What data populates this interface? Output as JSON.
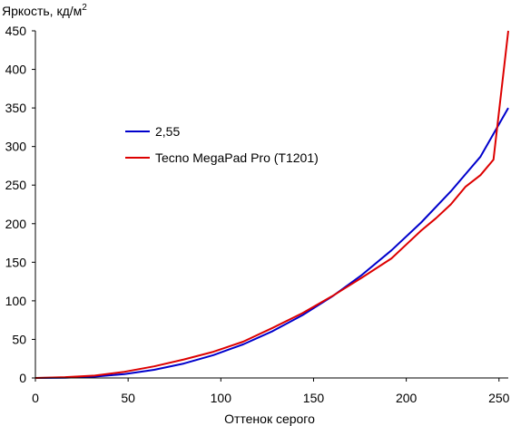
{
  "chart_data": {
    "type": "line",
    "xlabel": "Оттенок серого",
    "ylabel_main": "Яркость, кд/м",
    "ylabel_sup": "2",
    "xlim": [
      0,
      255
    ],
    "ylim": [
      0,
      450
    ],
    "xticks": [
      0,
      50,
      100,
      150,
      200,
      250
    ],
    "yticks": [
      0,
      50,
      100,
      150,
      200,
      250,
      300,
      350,
      400,
      450
    ],
    "grid": false,
    "legend_position": "center-left",
    "series": [
      {
        "name": "2,55",
        "color": "#0000cc",
        "gamma": 2.55,
        "x": [
          0,
          16,
          32,
          48,
          64,
          80,
          96,
          112,
          128,
          144,
          160,
          176,
          192,
          208,
          224,
          240,
          255
        ],
        "y": [
          0,
          0.3,
          1.8,
          5.1,
          10.6,
          18.7,
          29.6,
          43.5,
          60.7,
          81.3,
          105.5,
          133.5,
          165.4,
          201.5,
          241.9,
          286.9,
          350
        ]
      },
      {
        "name": "Tecno MegaPad Pro (T1201)",
        "color": "#dd0000",
        "x": [
          0,
          16,
          32,
          48,
          64,
          80,
          96,
          112,
          128,
          144,
          160,
          176,
          192,
          200,
          208,
          216,
          224,
          232,
          240,
          247,
          255
        ],
        "y": [
          0,
          1,
          3,
          8,
          15,
          24,
          34,
          47,
          65,
          84,
          106,
          130,
          155,
          173,
          191,
          207,
          225,
          248,
          263,
          283,
          450
        ]
      }
    ]
  }
}
